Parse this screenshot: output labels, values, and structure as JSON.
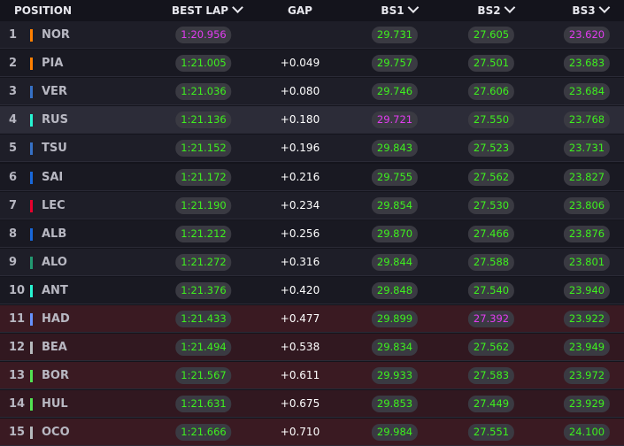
{
  "header": {
    "position": "POSITION",
    "best_lap": "BEST LAP",
    "gap": "GAP",
    "bs1": "BS1",
    "bs2": "BS2",
    "bs3": "BS3"
  },
  "colors": {
    "green": "#3ef01e",
    "purple": "#e23cf0",
    "pill_bg": "#3a3a42",
    "eliminated_row": "#3a1a22"
  },
  "rows": [
    {
      "pos": "1",
      "code": "NOR",
      "team_color": "#ff8000",
      "best": "1:20.956",
      "best_c": "purple",
      "gap": "",
      "bs1": "29.731",
      "bs1_c": "green",
      "bs2": "27.605",
      "bs2_c": "green",
      "bs3": "23.620",
      "bs3_c": "purple",
      "eliminated": false
    },
    {
      "pos": "2",
      "code": "PIA",
      "team_color": "#ff8000",
      "best": "1:21.005",
      "best_c": "green",
      "gap": "+0.049",
      "bs1": "29.757",
      "bs1_c": "green",
      "bs2": "27.501",
      "bs2_c": "green",
      "bs3": "23.683",
      "bs3_c": "green",
      "eliminated": false
    },
    {
      "pos": "3",
      "code": "VER",
      "team_color": "#3671c6",
      "best": "1:21.036",
      "best_c": "green",
      "gap": "+0.080",
      "bs1": "29.746",
      "bs1_c": "green",
      "bs2": "27.606",
      "bs2_c": "green",
      "bs3": "23.684",
      "bs3_c": "green",
      "eliminated": false
    },
    {
      "pos": "4",
      "code": "RUS",
      "team_color": "#27f4d2",
      "best": "1:21.136",
      "best_c": "green",
      "gap": "+0.180",
      "bs1": "29.721",
      "bs1_c": "purple",
      "bs2": "27.550",
      "bs2_c": "green",
      "bs3": "23.768",
      "bs3_c": "green",
      "eliminated": false
    },
    {
      "pos": "5",
      "code": "TSU",
      "team_color": "#3671c6",
      "best": "1:21.152",
      "best_c": "green",
      "gap": "+0.196",
      "bs1": "29.843",
      "bs1_c": "green",
      "bs2": "27.523",
      "bs2_c": "green",
      "bs3": "23.731",
      "bs3_c": "green",
      "eliminated": false
    },
    {
      "pos": "6",
      "code": "SAI",
      "team_color": "#1868db",
      "best": "1:21.172",
      "best_c": "green",
      "gap": "+0.216",
      "bs1": "29.755",
      "bs1_c": "green",
      "bs2": "27.562",
      "bs2_c": "green",
      "bs3": "23.827",
      "bs3_c": "green",
      "eliminated": false
    },
    {
      "pos": "7",
      "code": "LEC",
      "team_color": "#e8002d",
      "best": "1:21.190",
      "best_c": "green",
      "gap": "+0.234",
      "bs1": "29.854",
      "bs1_c": "green",
      "bs2": "27.530",
      "bs2_c": "green",
      "bs3": "23.806",
      "bs3_c": "green",
      "eliminated": false
    },
    {
      "pos": "8",
      "code": "ALB",
      "team_color": "#1868db",
      "best": "1:21.212",
      "best_c": "green",
      "gap": "+0.256",
      "bs1": "29.870",
      "bs1_c": "green",
      "bs2": "27.466",
      "bs2_c": "green",
      "bs3": "23.876",
      "bs3_c": "green",
      "eliminated": false
    },
    {
      "pos": "9",
      "code": "ALO",
      "team_color": "#229971",
      "best": "1:21.272",
      "best_c": "green",
      "gap": "+0.316",
      "bs1": "29.844",
      "bs1_c": "green",
      "bs2": "27.588",
      "bs2_c": "green",
      "bs3": "23.801",
      "bs3_c": "green",
      "eliminated": false
    },
    {
      "pos": "10",
      "code": "ANT",
      "team_color": "#27f4d2",
      "best": "1:21.376",
      "best_c": "green",
      "gap": "+0.420",
      "bs1": "29.848",
      "bs1_c": "green",
      "bs2": "27.540",
      "bs2_c": "green",
      "bs3": "23.940",
      "bs3_c": "green",
      "eliminated": false
    },
    {
      "pos": "11",
      "code": "HAD",
      "team_color": "#6692ff",
      "best": "1:21.433",
      "best_c": "green",
      "gap": "+0.477",
      "bs1": "29.899",
      "bs1_c": "green",
      "bs2": "27.392",
      "bs2_c": "purple",
      "bs3": "23.922",
      "bs3_c": "green",
      "eliminated": true
    },
    {
      "pos": "12",
      "code": "BEA",
      "team_color": "#b6babd",
      "best": "1:21.494",
      "best_c": "green",
      "gap": "+0.538",
      "bs1": "29.834",
      "bs1_c": "green",
      "bs2": "27.562",
      "bs2_c": "green",
      "bs3": "23.949",
      "bs3_c": "green",
      "eliminated": true
    },
    {
      "pos": "13",
      "code": "BOR",
      "team_color": "#52e252",
      "best": "1:21.567",
      "best_c": "green",
      "gap": "+0.611",
      "bs1": "29.933",
      "bs1_c": "green",
      "bs2": "27.583",
      "bs2_c": "green",
      "bs3": "23.972",
      "bs3_c": "green",
      "eliminated": true
    },
    {
      "pos": "14",
      "code": "HUL",
      "team_color": "#52e252",
      "best": "1:21.631",
      "best_c": "green",
      "gap": "+0.675",
      "bs1": "29.853",
      "bs1_c": "green",
      "bs2": "27.449",
      "bs2_c": "green",
      "bs3": "23.929",
      "bs3_c": "green",
      "eliminated": true
    },
    {
      "pos": "15",
      "code": "OCO",
      "team_color": "#b6babd",
      "best": "1:21.666",
      "best_c": "green",
      "gap": "+0.710",
      "bs1": "29.984",
      "bs1_c": "green",
      "bs2": "27.551",
      "bs2_c": "green",
      "bs3": "24.100",
      "bs3_c": "green",
      "eliminated": true
    }
  ]
}
